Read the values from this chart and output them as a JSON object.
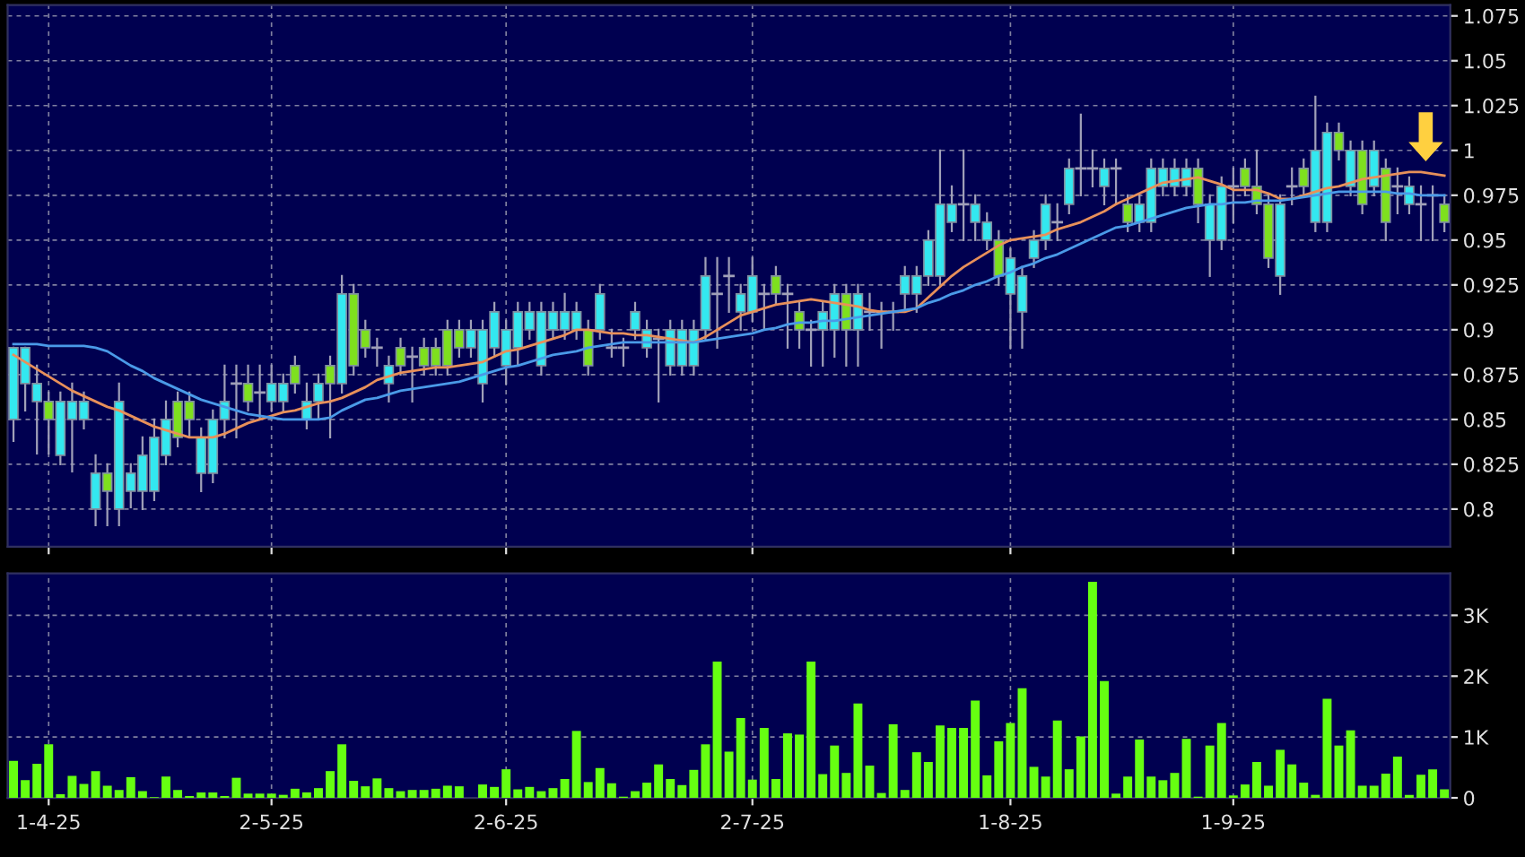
{
  "chart_data": [
    {
      "type": "candlestick",
      "categories": [
        null,
        null,
        null,
        null,
        null,
        null,
        null,
        null,
        null,
        null,
        null,
        null,
        null,
        null,
        null,
        null,
        null,
        null,
        null,
        null,
        null,
        null,
        null,
        null,
        null,
        null,
        null,
        null,
        null,
        null,
        null,
        null,
        null,
        null,
        null,
        null,
        null,
        null,
        null,
        null,
        null,
        null,
        null,
        null,
        null,
        null,
        null,
        null,
        null,
        null,
        null,
        null,
        null,
        null,
        null,
        null,
        null,
        null,
        null,
        null,
        null,
        null,
        null,
        null,
        null,
        null,
        null,
        null,
        null,
        null,
        null,
        null,
        null,
        null,
        null,
        null,
        null,
        null,
        null,
        null,
        null,
        null,
        null,
        null,
        null,
        null,
        null,
        null,
        null,
        null,
        null,
        null,
        null,
        null,
        null,
        null,
        null,
        null,
        null,
        null,
        null,
        null,
        null,
        null,
        null,
        null,
        null,
        null,
        null,
        null,
        null,
        null,
        null,
        null,
        null,
        null,
        null,
        null,
        null,
        null,
        null,
        null,
        null
      ],
      "ohlc": [
        [
          0.85,
          0.89,
          0.838,
          0.89
        ],
        [
          0.87,
          0.89,
          0.855,
          0.89
        ],
        [
          0.86,
          0.88,
          0.831,
          0.87
        ],
        [
          0.86,
          0.865,
          0.831,
          0.85
        ],
        [
          0.83,
          0.865,
          0.825,
          0.86
        ],
        [
          0.85,
          0.87,
          0.821,
          0.86
        ],
        [
          0.85,
          0.865,
          0.845,
          0.86
        ],
        [
          0.8,
          0.83,
          0.791,
          0.82
        ],
        [
          0.82,
          0.825,
          0.791,
          0.81
        ],
        [
          0.8,
          0.87,
          0.791,
          0.86
        ],
        [
          0.81,
          0.825,
          0.801,
          0.82
        ],
        [
          0.81,
          0.84,
          0.8,
          0.83
        ],
        [
          0.81,
          0.85,
          0.805,
          0.84
        ],
        [
          0.83,
          0.86,
          0.825,
          0.85
        ],
        [
          0.86,
          0.865,
          0.835,
          0.84
        ],
        [
          0.86,
          0.865,
          0.84,
          0.85
        ],
        [
          0.82,
          0.845,
          0.81,
          0.84
        ],
        [
          0.82,
          0.855,
          0.815,
          0.85
        ],
        [
          0.85,
          0.88,
          0.84,
          0.86
        ],
        [
          0.87,
          0.88,
          0.84,
          0.87
        ],
        [
          0.87,
          0.88,
          0.855,
          0.86
        ],
        [
          0.865,
          0.88,
          0.85,
          0.865
        ],
        [
          0.86,
          0.88,
          0.855,
          0.87
        ],
        [
          0.86,
          0.875,
          0.855,
          0.87
        ],
        [
          0.88,
          0.885,
          0.865,
          0.87
        ],
        [
          0.85,
          0.87,
          0.845,
          0.86
        ],
        [
          0.86,
          0.875,
          0.85,
          0.87
        ],
        [
          0.88,
          0.885,
          0.84,
          0.87
        ],
        [
          0.87,
          0.93,
          0.865,
          0.92
        ],
        [
          0.92,
          0.925,
          0.875,
          0.88
        ],
        [
          0.9,
          0.905,
          0.885,
          0.89
        ],
        [
          0.89,
          0.895,
          0.88,
          0.89
        ],
        [
          0.87,
          0.885,
          0.86,
          0.88
        ],
        [
          0.89,
          0.895,
          0.875,
          0.88
        ],
        [
          0.885,
          0.89,
          0.86,
          0.885
        ],
        [
          0.89,
          0.895,
          0.875,
          0.88
        ],
        [
          0.89,
          0.895,
          0.875,
          0.88
        ],
        [
          0.9,
          0.905,
          0.875,
          0.88
        ],
        [
          0.9,
          0.905,
          0.885,
          0.89
        ],
        [
          0.89,
          0.905,
          0.885,
          0.9
        ],
        [
          0.87,
          0.905,
          0.86,
          0.9
        ],
        [
          0.89,
          0.915,
          0.885,
          0.91
        ],
        [
          0.88,
          0.905,
          0.87,
          0.9
        ],
        [
          0.89,
          0.915,
          0.88,
          0.91
        ],
        [
          0.9,
          0.915,
          0.895,
          0.91
        ],
        [
          0.88,
          0.915,
          0.875,
          0.91
        ],
        [
          0.9,
          0.915,
          0.895,
          0.91
        ],
        [
          0.9,
          0.92,
          0.895,
          0.91
        ],
        [
          0.9,
          0.915,
          0.895,
          0.91
        ],
        [
          0.9,
          0.905,
          0.875,
          0.88
        ],
        [
          0.9,
          0.925,
          0.895,
          0.92
        ],
        [
          0.89,
          0.9,
          0.885,
          0.89
        ],
        [
          0.89,
          0.895,
          0.88,
          0.89
        ],
        [
          0.9,
          0.915,
          0.895,
          0.91
        ],
        [
          0.89,
          0.905,
          0.885,
          0.9
        ],
        [
          0.895,
          0.9,
          0.86,
          0.895
        ],
        [
          0.88,
          0.905,
          0.875,
          0.9
        ],
        [
          0.88,
          0.905,
          0.875,
          0.9
        ],
        [
          0.88,
          0.905,
          0.875,
          0.9
        ],
        [
          0.9,
          0.94,
          0.895,
          0.93
        ],
        [
          0.92,
          0.94,
          0.89,
          0.92
        ],
        [
          0.93,
          0.94,
          0.91,
          0.93
        ],
        [
          0.91,
          0.925,
          0.9,
          0.92
        ],
        [
          0.91,
          0.94,
          0.905,
          0.93
        ],
        [
          0.92,
          0.925,
          0.9,
          0.92
        ],
        [
          0.93,
          0.935,
          0.915,
          0.92
        ],
        [
          0.92,
          0.925,
          0.89,
          0.92
        ],
        [
          0.91,
          0.915,
          0.89,
          0.9
        ],
        [
          0.9,
          0.905,
          0.88,
          0.9
        ],
        [
          0.9,
          0.915,
          0.88,
          0.91
        ],
        [
          0.9,
          0.925,
          0.885,
          0.92
        ],
        [
          0.92,
          0.925,
          0.88,
          0.9
        ],
        [
          0.9,
          0.925,
          0.88,
          0.92
        ],
        [
          0.91,
          0.92,
          0.9,
          0.91
        ],
        [
          0.91,
          0.915,
          0.89,
          0.91
        ],
        [
          0.91,
          0.915,
          0.9,
          0.91
        ],
        [
          0.92,
          0.935,
          0.91,
          0.93
        ],
        [
          0.92,
          0.935,
          0.91,
          0.93
        ],
        [
          0.93,
          0.955,
          0.925,
          0.95
        ],
        [
          0.93,
          1.0,
          0.925,
          0.97
        ],
        [
          0.96,
          0.98,
          0.955,
          0.97
        ],
        [
          0.97,
          1.0,
          0.95,
          0.97
        ],
        [
          0.96,
          0.975,
          0.95,
          0.97
        ],
        [
          0.95,
          0.965,
          0.945,
          0.96
        ],
        [
          0.95,
          0.955,
          0.925,
          0.93
        ],
        [
          0.92,
          0.945,
          0.89,
          0.94
        ],
        [
          0.91,
          0.935,
          0.89,
          0.93
        ],
        [
          0.94,
          0.955,
          0.935,
          0.95
        ],
        [
          0.95,
          0.975,
          0.945,
          0.97
        ],
        [
          0.96,
          0.97,
          0.95,
          0.96
        ],
        [
          0.97,
          0.995,
          0.965,
          0.99
        ],
        [
          0.99,
          1.02,
          0.975,
          0.99
        ],
        [
          0.99,
          1.0,
          0.98,
          0.99
        ],
        [
          0.98,
          0.995,
          0.97,
          0.99
        ],
        [
          0.99,
          0.995,
          0.97,
          0.99
        ],
        [
          0.97,
          0.975,
          0.955,
          0.96
        ],
        [
          0.96,
          0.975,
          0.955,
          0.97
        ],
        [
          0.96,
          0.995,
          0.955,
          0.99
        ],
        [
          0.98,
          0.995,
          0.975,
          0.99
        ],
        [
          0.98,
          0.995,
          0.975,
          0.99
        ],
        [
          0.98,
          0.995,
          0.975,
          0.99
        ],
        [
          0.99,
          0.995,
          0.96,
          0.97
        ],
        [
          0.95,
          0.975,
          0.93,
          0.97
        ],
        [
          0.95,
          0.985,
          0.945,
          0.98
        ],
        [
          0.98,
          0.99,
          0.96,
          0.98
        ],
        [
          0.99,
          0.995,
          0.975,
          0.98
        ],
        [
          0.98,
          1.0,
          0.965,
          0.97
        ],
        [
          0.97,
          0.975,
          0.935,
          0.94
        ],
        [
          0.93,
          0.975,
          0.92,
          0.97
        ],
        [
          0.98,
          0.99,
          0.97,
          0.98
        ],
        [
          0.99,
          0.995,
          0.975,
          0.98
        ],
        [
          0.96,
          1.03,
          0.955,
          1.0
        ],
        [
          0.96,
          1.015,
          0.955,
          1.01
        ],
        [
          1.01,
          1.015,
          0.995,
          1.0
        ],
        [
          0.98,
          1.005,
          0.975,
          1.0
        ],
        [
          1.0,
          1.005,
          0.965,
          0.97
        ],
        [
          0.98,
          1.005,
          0.975,
          1.0
        ],
        [
          0.99,
          0.995,
          0.95,
          0.96
        ],
        [
          0.98,
          0.99,
          0.965,
          0.98
        ],
        [
          0.97,
          0.985,
          0.965,
          0.98
        ],
        [
          0.97,
          0.98,
          0.95,
          0.97
        ],
        [
          0.975,
          0.98,
          0.95,
          0.975
        ],
        [
          0.97,
          0.975,
          0.955,
          0.96
        ]
      ],
      "colors": [
        "#33e8f0",
        "#33e8f0",
        "#33e8f0",
        "#7ee01e",
        "#33e8f0",
        "#33e8f0",
        "#33e8f0",
        "#33e8f0",
        "#7ee01e",
        "#33e8f0",
        "#33e8f0",
        "#33e8f0",
        "#33e8f0",
        "#33e8f0",
        "#7ee01e",
        "#7ee01e",
        "#33e8f0",
        "#33e8f0",
        "#33e8f0",
        "#a8a8c0",
        "#7ee01e",
        "#a8a8c0",
        "#33e8f0",
        "#33e8f0",
        "#7ee01e",
        "#33e8f0",
        "#33e8f0",
        "#7ee01e",
        "#33e8f0",
        "#7ee01e",
        "#7ee01e",
        "#a8a8c0",
        "#33e8f0",
        "#7ee01e",
        "#a8a8c0",
        "#7ee01e",
        "#7ee01e",
        "#7ee01e",
        "#7ee01e",
        "#33e8f0",
        "#33e8f0",
        "#33e8f0",
        "#33e8f0",
        "#33e8f0",
        "#33e8f0",
        "#33e8f0",
        "#33e8f0",
        "#33e8f0",
        "#33e8f0",
        "#7ee01e",
        "#33e8f0",
        "#a8a8c0",
        "#a8a8c0",
        "#33e8f0",
        "#33e8f0",
        "#a8a8c0",
        "#33e8f0",
        "#33e8f0",
        "#33e8f0",
        "#33e8f0",
        "#a8a8c0",
        "#a8a8c0",
        "#33e8f0",
        "#33e8f0",
        "#a8a8c0",
        "#7ee01e",
        "#a8a8c0",
        "#7ee01e",
        "#a8a8c0",
        "#33e8f0",
        "#33e8f0",
        "#7ee01e",
        "#33e8f0",
        "#a8a8c0",
        "#a8a8c0",
        "#a8a8c0",
        "#33e8f0",
        "#33e8f0",
        "#33e8f0",
        "#33e8f0",
        "#33e8f0",
        "#a8a8c0",
        "#33e8f0",
        "#33e8f0",
        "#7ee01e",
        "#33e8f0",
        "#33e8f0",
        "#33e8f0",
        "#33e8f0",
        "#a8a8c0",
        "#33e8f0",
        "#a8a8c0",
        "#a8a8c0",
        "#33e8f0",
        "#a8a8c0",
        "#7ee01e",
        "#33e8f0",
        "#33e8f0",
        "#33e8f0",
        "#33e8f0",
        "#33e8f0",
        "#7ee01e",
        "#33e8f0",
        "#33e8f0",
        "#a8a8c0",
        "#7ee01e",
        "#7ee01e",
        "#7ee01e",
        "#33e8f0",
        "#a8a8c0",
        "#7ee01e",
        "#33e8f0",
        "#33e8f0",
        "#7ee01e",
        "#33e8f0",
        "#7ee01e",
        "#33e8f0",
        "#7ee01e",
        "#a8a8c0",
        "#33e8f0",
        "#a8a8c0",
        "#a8a8c0",
        "#7ee01e"
      ],
      "series": [
        {
          "type": "line",
          "color": "#e8905a",
          "values": [
            0.886,
            0.882,
            0.878,
            0.874,
            0.87,
            0.866,
            0.863,
            0.86,
            0.857,
            0.855,
            0.852,
            0.849,
            0.846,
            0.844,
            0.842,
            0.84,
            0.84,
            0.84,
            0.842,
            0.845,
            0.848,
            0.85,
            0.852,
            0.854,
            0.855,
            0.857,
            0.859,
            0.86,
            0.862,
            0.865,
            0.868,
            0.872,
            0.874,
            0.876,
            0.877,
            0.878,
            0.879,
            0.879,
            0.88,
            0.881,
            0.882,
            0.885,
            0.888,
            0.889,
            0.891,
            0.893,
            0.895,
            0.897,
            0.9,
            0.9,
            0.899,
            0.898,
            0.898,
            0.897,
            0.897,
            0.896,
            0.895,
            0.894,
            0.893,
            0.896,
            0.9,
            0.904,
            0.908,
            0.91,
            0.912,
            0.914,
            0.915,
            0.916,
            0.917,
            0.916,
            0.915,
            0.914,
            0.913,
            0.911,
            0.91,
            0.91,
            0.91,
            0.912,
            0.918,
            0.924,
            0.93,
            0.935,
            0.939,
            0.943,
            0.947,
            0.95,
            0.951,
            0.952,
            0.953,
            0.956,
            0.958,
            0.96,
            0.963,
            0.966,
            0.97,
            0.973,
            0.976,
            0.979,
            0.982,
            0.983,
            0.984,
            0.985,
            0.983,
            0.981,
            0.978,
            0.978,
            0.978,
            0.976,
            0.973,
            0.973,
            0.975,
            0.977,
            0.979,
            0.98,
            0.982,
            0.984,
            0.985,
            0.986,
            0.987,
            0.988,
            0.988,
            0.987,
            0.986
          ]
        },
        {
          "type": "line",
          "color": "#4a9ae8",
          "values": [
            0.892,
            0.892,
            0.892,
            0.891,
            0.891,
            0.891,
            0.891,
            0.89,
            0.888,
            0.884,
            0.88,
            0.877,
            0.873,
            0.87,
            0.867,
            0.864,
            0.861,
            0.859,
            0.857,
            0.855,
            0.853,
            0.852,
            0.851,
            0.85,
            0.85,
            0.85,
            0.85,
            0.851,
            0.855,
            0.858,
            0.861,
            0.862,
            0.864,
            0.866,
            0.867,
            0.868,
            0.869,
            0.87,
            0.871,
            0.873,
            0.875,
            0.877,
            0.879,
            0.88,
            0.882,
            0.884,
            0.886,
            0.887,
            0.888,
            0.89,
            0.891,
            0.892,
            0.893,
            0.893,
            0.893,
            0.893,
            0.893,
            0.893,
            0.893,
            0.894,
            0.895,
            0.896,
            0.897,
            0.898,
            0.9,
            0.901,
            0.903,
            0.904,
            0.904,
            0.905,
            0.905,
            0.906,
            0.907,
            0.908,
            0.909,
            0.91,
            0.911,
            0.912,
            0.915,
            0.917,
            0.92,
            0.922,
            0.925,
            0.927,
            0.93,
            0.932,
            0.935,
            0.937,
            0.94,
            0.942,
            0.945,
            0.948,
            0.951,
            0.954,
            0.957,
            0.958,
            0.96,
            0.962,
            0.964,
            0.966,
            0.968,
            0.969,
            0.97,
            0.97,
            0.971,
            0.971,
            0.972,
            0.972,
            0.972,
            0.973,
            0.974,
            0.975,
            0.976,
            0.977,
            0.977,
            0.977,
            0.977,
            0.977,
            0.976,
            0.976,
            0.975,
            0.975,
            0.975
          ]
        }
      ],
      "ylim": [
        0.779,
        1.081
      ],
      "yticks": [
        0.8,
        0.825,
        0.85,
        0.875,
        0.9,
        0.925,
        0.95,
        0.975,
        1,
        1.025,
        1.05,
        1.075
      ],
      "grid": true,
      "tick_labels": "y"
    },
    {
      "type": "bar",
      "categories": [
        null,
        null,
        null,
        "1-4-25",
        null,
        null,
        null,
        null,
        null,
        null,
        null,
        null,
        null,
        null,
        null,
        null,
        null,
        null,
        null,
        null,
        null,
        null,
        "2-5-25",
        null,
        null,
        null,
        null,
        null,
        null,
        null,
        null,
        null,
        null,
        null,
        null,
        null,
        null,
        null,
        null,
        null,
        null,
        null,
        "2-6-25",
        null,
        null,
        null,
        null,
        null,
        null,
        null,
        null,
        null,
        null,
        null,
        null,
        null,
        null,
        null,
        null,
        null,
        null,
        null,
        null,
        "2-7-25",
        null,
        null,
        null,
        null,
        null,
        null,
        null,
        null,
        null,
        null,
        null,
        null,
        null,
        null,
        null,
        null,
        null,
        null,
        null,
        null,
        null,
        "1-8-25",
        null,
        null,
        null,
        null,
        null,
        null,
        null,
        null,
        null,
        null,
        null,
        null,
        null,
        null,
        null,
        null,
        null,
        null,
        "1-9-25",
        null,
        null,
        null,
        null,
        null,
        null,
        null,
        null,
        null,
        null,
        null,
        null,
        null,
        null,
        null,
        null,
        null,
        null
      ],
      "color": "#66ff11",
      "values": [
        610,
        290,
        560,
        880,
        60,
        360,
        230,
        440,
        200,
        130,
        340,
        110,
        10,
        350,
        130,
        30,
        90,
        90,
        30,
        330,
        70,
        70,
        70,
        50,
        150,
        90,
        160,
        440,
        880,
        280,
        190,
        320,
        160,
        110,
        130,
        130,
        150,
        200,
        190,
        0,
        220,
        180,
        470,
        140,
        180,
        110,
        160,
        310,
        1100,
        260,
        490,
        240,
        20,
        110,
        250,
        550,
        310,
        210,
        460,
        880,
        2240,
        760,
        1310,
        300,
        1150,
        310,
        1060,
        1040,
        2240,
        390,
        860,
        410,
        1550,
        530,
        80,
        1210,
        130,
        750,
        590,
        1190,
        1150,
        1150,
        1600,
        370,
        930,
        1230,
        1800,
        510,
        350,
        1270,
        470,
        1010,
        3550,
        1920,
        70,
        350,
        960,
        350,
        290,
        410,
        970,
        20,
        860,
        1230,
        40,
        220,
        590,
        200,
        790,
        550,
        250,
        50,
        1630,
        860,
        1110,
        200,
        200,
        400,
        680,
        50,
        380,
        470,
        140
      ],
      "ylim": [
        0,
        3690
      ],
      "yticks": [
        0,
        {
          "value": 1000,
          "label": "1K"
        },
        {
          "value": 2000,
          "label": "2K"
        },
        {
          "value": 3000,
          "label": "3K"
        }
      ],
      "grid": true
    }
  ]
}
